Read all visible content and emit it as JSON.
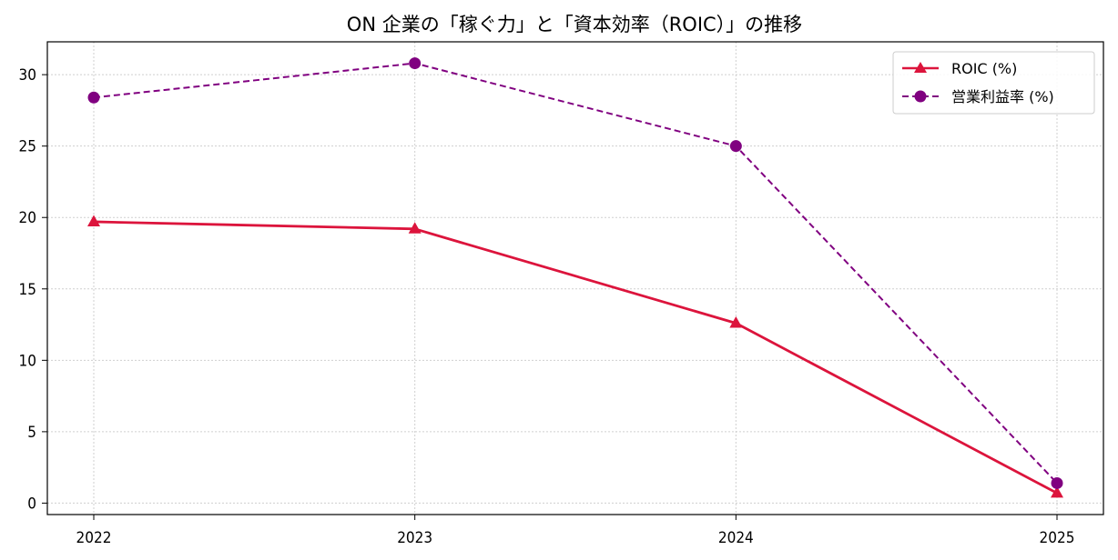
{
  "chart_data": {
    "type": "line",
    "title": "ON 企業の「稼ぐ力」と「資本効率（ROIC）」の推移",
    "x": [
      "2022",
      "2023",
      "2024",
      "2025"
    ],
    "ylim": [
      -0.8,
      32.3
    ],
    "yticks": [
      0,
      5,
      10,
      15,
      20,
      25,
      30
    ],
    "grid": true,
    "legend_position": "top-right",
    "series": [
      {
        "name": "ROIC (%)",
        "values": [
          19.7,
          19.2,
          12.6,
          0.7
        ],
        "color": "#dc143c",
        "marker": "triangle",
        "line_style": "solid"
      },
      {
        "name": "営業利益率 (%)",
        "values": [
          28.4,
          30.8,
          25.0,
          1.4
        ],
        "color": "#800080",
        "marker": "circle",
        "line_style": "dashed"
      }
    ]
  }
}
